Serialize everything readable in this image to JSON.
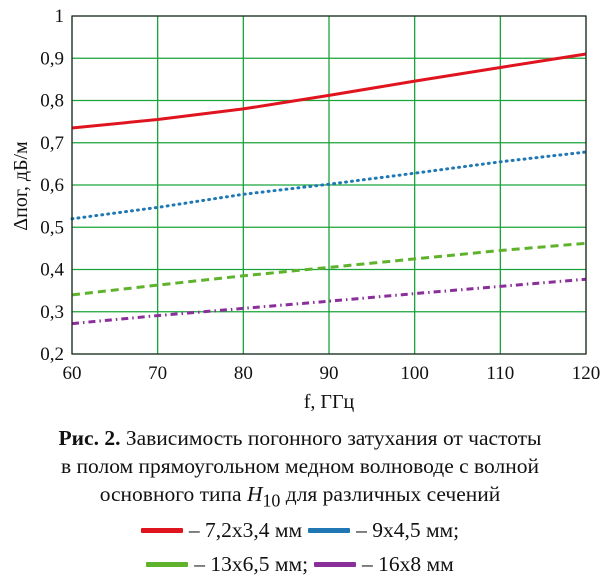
{
  "chart_data": {
    "type": "line",
    "xlabel": "f, ГГц",
    "ylabel": "Δпог, дБ/м",
    "xlim": [
      60,
      120
    ],
    "ylim": [
      0.2,
      1.0
    ],
    "x_ticks": [
      "60",
      "70",
      "80",
      "90",
      "100",
      "110",
      "120"
    ],
    "y_ticks": [
      "0,2",
      "0,3",
      "0,4",
      "0,5",
      "0,6",
      "0,7",
      "0,8",
      "0,9",
      "1"
    ],
    "grid": true,
    "grid_color": "#1aa33a",
    "x": [
      60,
      70,
      80,
      90,
      100,
      110,
      120
    ],
    "series": [
      {
        "name": "– 7,2x3,4 мм",
        "color": "#e0141e",
        "style": "solid",
        "values": [
          0.735,
          0.755,
          0.78,
          0.812,
          0.846,
          0.878,
          0.91
        ]
      },
      {
        "name": "– 9x4,5 мм;",
        "color": "#1f78b4",
        "style": "dotted",
        "values": [
          0.52,
          0.547,
          0.578,
          0.602,
          0.628,
          0.655,
          0.678
        ]
      },
      {
        "name": "– 13x6,5 мм;",
        "color": "#5fb32c",
        "style": "dashed",
        "values": [
          0.34,
          0.363,
          0.385,
          0.405,
          0.425,
          0.445,
          0.462
        ]
      },
      {
        "name": "– 16x8 мм",
        "color": "#8a2f9a",
        "style": "dashdot",
        "values": [
          0.272,
          0.291,
          0.308,
          0.325,
          0.343,
          0.36,
          0.377
        ]
      }
    ]
  },
  "caption": {
    "label": "Рис. 2.",
    "line1": " Зависимость погонного затухания от частоты",
    "line2": "в полом прямоугольном медном волноводе с волной",
    "line3_pre": "основного типа ",
    "mode_symbol": "H",
    "mode_sub": "10",
    "line3_post": " для различных сечений"
  }
}
